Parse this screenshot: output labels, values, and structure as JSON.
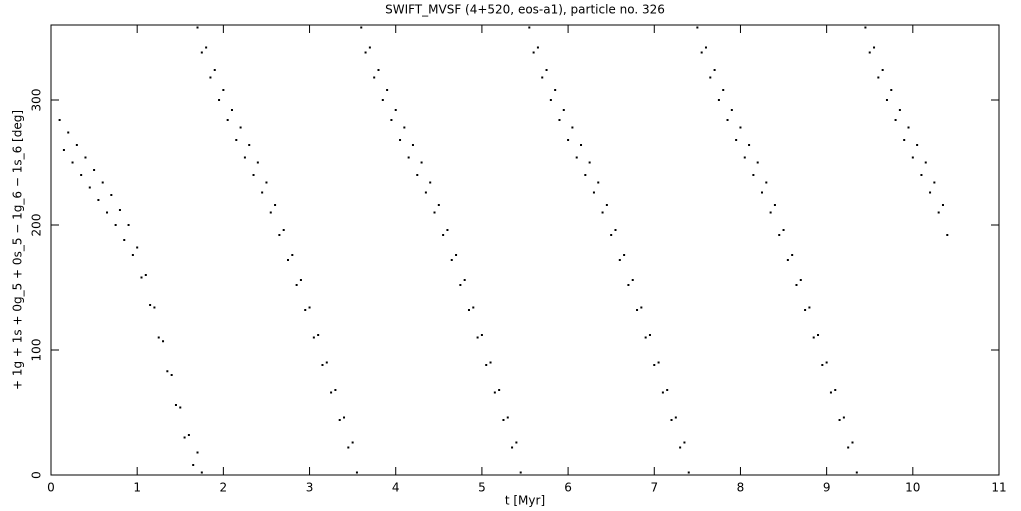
{
  "chart_data": {
    "type": "scatter",
    "title": "SWIFT_MVSF (4+520, eos-a1), particle no. 326",
    "x_label": "t [Myr]",
    "y_label": "+ 1g + 1s + 0g_5 + 0s_5 − 1g_6 − 1s_6 [deg]",
    "color": "#000000",
    "xlim": [
      0,
      11
    ],
    "ylim": [
      0,
      360
    ],
    "xticks": [
      0,
      1,
      2,
      3,
      4,
      5,
      6,
      7,
      8,
      9,
      10,
      11
    ],
    "yticks": [
      0,
      100,
      200,
      300
    ],
    "x": [
      0.1,
      0.15,
      0.2,
      0.25,
      0.3,
      0.35,
      0.4,
      0.45,
      0.5,
      0.55,
      0.6,
      0.65,
      0.7,
      0.75,
      0.8,
      0.85,
      0.9,
      0.95,
      1,
      1.05,
      1.1,
      1.15,
      1.2,
      1.25,
      1.3,
      1.35,
      1.4,
      1.45,
      1.5,
      1.55,
      1.6,
      1.65,
      1.7,
      1.75,
      1.7,
      1.75,
      1.8,
      1.85,
      1.9,
      1.95,
      2,
      2.05,
      2.1,
      2.15,
      2.2,
      2.25,
      2.3,
      2.35,
      2.4,
      2.45,
      2.5,
      2.55,
      2.6,
      2.65,
      2.7,
      2.75,
      2.8,
      2.85,
      2.9,
      2.95,
      3,
      3.05,
      3.1,
      3.15,
      3.2,
      3.25,
      3.3,
      3.35,
      3.4,
      3.45,
      3.5,
      3.55,
      3.6,
      3.65,
      3.7,
      3.75,
      3.8,
      3.85,
      3.9,
      3.95,
      4,
      4.05,
      4.1,
      4.15,
      4.2,
      4.25,
      4.3,
      4.35,
      4.4,
      4.45,
      4.5,
      4.55,
      4.6,
      4.65,
      4.7,
      4.75,
      4.8,
      4.85,
      4.9,
      4.95,
      5,
      5.05,
      5.1,
      5.15,
      5.2,
      5.25,
      5.3,
      5.35,
      5.4,
      5.45,
      5.55,
      5.6,
      5.65,
      5.7,
      5.75,
      5.8,
      5.85,
      5.9,
      5.95,
      6,
      6.05,
      6.1,
      6.15,
      6.2,
      6.25,
      6.3,
      6.35,
      6.4,
      6.45,
      6.5,
      6.55,
      6.6,
      6.65,
      6.7,
      6.75,
      6.8,
      6.85,
      6.9,
      6.95,
      7,
      7.05,
      7.1,
      7.15,
      7.2,
      7.25,
      7.3,
      7.35,
      7.4,
      7.5,
      7.55,
      7.6,
      7.65,
      7.7,
      7.75,
      7.8,
      7.85,
      7.9,
      7.95,
      8,
      8.05,
      8.1,
      8.15,
      8.2,
      8.25,
      8.3,
      8.35,
      8.4,
      8.45,
      8.5,
      8.55,
      8.6,
      8.65,
      8.7,
      8.75,
      8.8,
      8.85,
      8.9,
      8.95,
      9,
      9.05,
      9.1,
      9.15,
      9.2,
      9.25,
      9.3,
      9.35,
      9.45,
      9.5,
      9.55,
      9.6,
      9.65,
      9.7,
      9.75,
      9.8,
      9.85,
      9.9,
      9.95,
      10,
      10.05,
      10.1,
      10.15,
      10.2,
      10.25,
      10.3,
      10.35,
      10.4
    ],
    "values": [
      284,
      260,
      274,
      250,
      264,
      240,
      254,
      230,
      244,
      220,
      234,
      210,
      224,
      200,
      212,
      188,
      200,
      176,
      182,
      158,
      160,
      136,
      134,
      110,
      107,
      83,
      80,
      56,
      54,
      30,
      32,
      8,
      18,
      2,
      358,
      338,
      342,
      318,
      324,
      300,
      308,
      284,
      292,
      268,
      278,
      254,
      264,
      240,
      250,
      226,
      234,
      210,
      216,
      192,
      196,
      172,
      176,
      152,
      156,
      132,
      134,
      110,
      112,
      88,
      90,
      66,
      68,
      44,
      46,
      22,
      26,
      2,
      358,
      338,
      342,
      318,
      324,
      300,
      308,
      284,
      292,
      268,
      278,
      254,
      264,
      240,
      250,
      226,
      234,
      210,
      216,
      192,
      196,
      172,
      176,
      152,
      156,
      132,
      134,
      110,
      112,
      88,
      90,
      66,
      68,
      44,
      46,
      22,
      26,
      2,
      358,
      338,
      342,
      318,
      324,
      300,
      308,
      284,
      292,
      268,
      278,
      254,
      264,
      240,
      250,
      226,
      234,
      210,
      216,
      192,
      196,
      172,
      176,
      152,
      156,
      132,
      134,
      110,
      112,
      88,
      90,
      66,
      68,
      44,
      46,
      22,
      26,
      2,
      358,
      338,
      342,
      318,
      324,
      300,
      308,
      284,
      292,
      268,
      278,
      254,
      264,
      240,
      250,
      226,
      234,
      210,
      216,
      192,
      196,
      172,
      176,
      152,
      156,
      132,
      134,
      110,
      112,
      88,
      90,
      66,
      68,
      44,
      46,
      22,
      26,
      2,
      358,
      338,
      342,
      318,
      324,
      300,
      308,
      284,
      292,
      268,
      278,
      254,
      264,
      240,
      250,
      226,
      234,
      210,
      216,
      192
    ]
  }
}
